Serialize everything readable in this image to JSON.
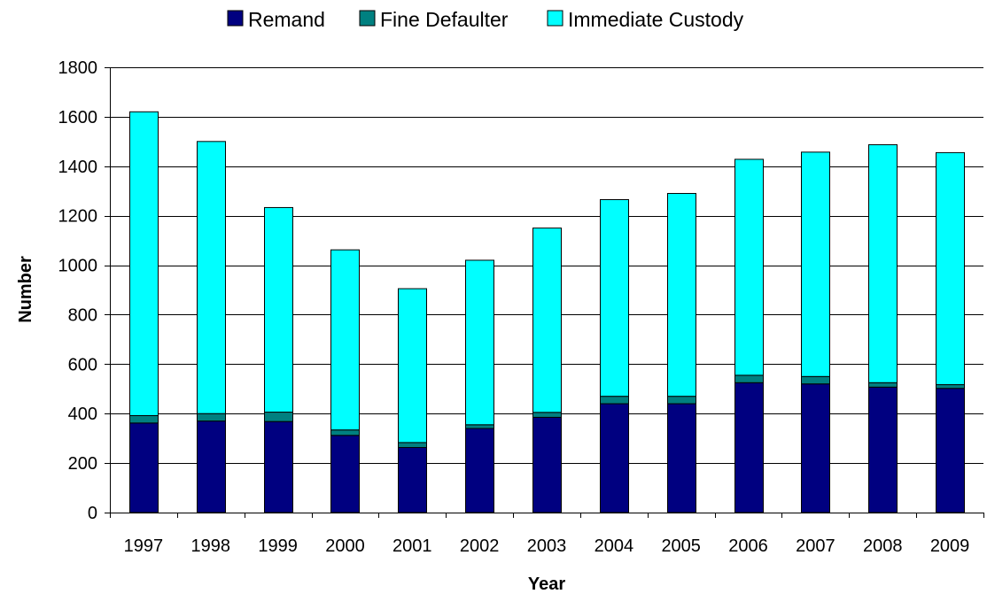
{
  "chart_data": {
    "type": "bar",
    "stacked": true,
    "title": "",
    "xlabel": "Year",
    "ylabel": "Number",
    "ylim": [
      0,
      1800
    ],
    "yticks": [
      0,
      200,
      400,
      600,
      800,
      1000,
      1200,
      1400,
      1600,
      1800
    ],
    "grid": true,
    "legend_position": "top",
    "categories": [
      "1997",
      "1998",
      "1999",
      "2000",
      "2001",
      "2002",
      "2003",
      "2004",
      "2005",
      "2006",
      "2007",
      "2008",
      "2009"
    ],
    "series": [
      {
        "name": "Remand",
        "color": "#000080",
        "values": [
          362,
          370,
          368,
          312,
          263,
          340,
          385,
          440,
          440,
          525,
          520,
          507,
          502
        ]
      },
      {
        "name": "Fine Defaulter",
        "color": "#008080",
        "values": [
          30,
          30,
          38,
          22,
          20,
          15,
          20,
          30,
          30,
          30,
          30,
          18,
          15
        ]
      },
      {
        "name": "Immediate Custody",
        "color": "#00FFFF",
        "values": [
          1228,
          1100,
          827,
          728,
          622,
          665,
          745,
          795,
          820,
          873,
          907,
          962,
          938
        ]
      }
    ]
  }
}
